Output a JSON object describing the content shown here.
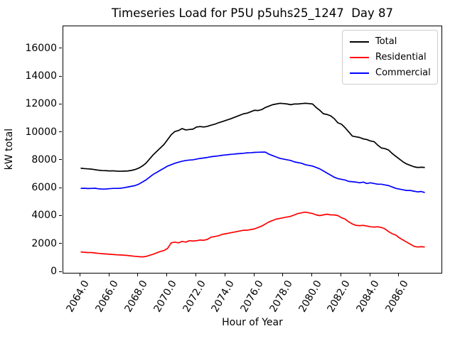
{
  "figure": {
    "background": "#ffffff"
  },
  "chart_data": {
    "type": "line",
    "title": "Timeseries Load for P5U p5uhs25_1247  Day 87",
    "xlabel": "Hour of Year",
    "ylabel": "kW total",
    "xlim": [
      2062.8,
      2088.9
    ],
    "ylim": [
      -50,
      17620
    ],
    "grid": false,
    "x_tick_rotation_deg": 60,
    "x_ticks": [
      {
        "value": 2064,
        "label": "2064.0"
      },
      {
        "value": 2066,
        "label": "2066.0"
      },
      {
        "value": 2068,
        "label": "2068.0"
      },
      {
        "value": 2070,
        "label": "2070.0"
      },
      {
        "value": 2072,
        "label": "2072.0"
      },
      {
        "value": 2074,
        "label": "2074.0"
      },
      {
        "value": 2076,
        "label": "2076.0"
      },
      {
        "value": 2078,
        "label": "2078.0"
      },
      {
        "value": 2080,
        "label": "2080.0"
      },
      {
        "value": 2082,
        "label": "2082.0"
      },
      {
        "value": 2084,
        "label": "2084.0"
      },
      {
        "value": 2086,
        "label": "2086.0"
      }
    ],
    "y_ticks": [
      {
        "value": 0,
        "label": "0"
      },
      {
        "value": 2000,
        "label": "2000"
      },
      {
        "value": 4000,
        "label": "4000"
      },
      {
        "value": 6000,
        "label": "6000"
      },
      {
        "value": 8000,
        "label": "8000"
      },
      {
        "value": 10000,
        "label": "10000"
      },
      {
        "value": 12000,
        "label": "12000"
      },
      {
        "value": 14000,
        "label": "14000"
      },
      {
        "value": 16000,
        "label": "16000"
      }
    ],
    "legend": {
      "position": "upper right",
      "entries": [
        {
          "label": "Total",
          "color": "#000000"
        },
        {
          "label": "Residential",
          "color": "#ff0000"
        },
        {
          "label": "Commercial",
          "color": "#0000ff"
        }
      ]
    },
    "x_start": 2064.0,
    "x_step": 0.25,
    "x_end": 2087.75,
    "series": [
      {
        "name": "Total",
        "color": "#000000",
        "values": [
          7450,
          7420,
          7400,
          7380,
          7340,
          7300,
          7280,
          7270,
          7250,
          7260,
          7240,
          7230,
          7240,
          7250,
          7290,
          7350,
          7450,
          7600,
          7800,
          8100,
          8400,
          8650,
          8900,
          9150,
          9500,
          9850,
          10075,
          10150,
          10290,
          10190,
          10220,
          10250,
          10400,
          10430,
          10400,
          10450,
          10530,
          10600,
          10700,
          10780,
          10870,
          10950,
          11050,
          11150,
          11250,
          11350,
          11400,
          11500,
          11600,
          11580,
          11650,
          11800,
          11900,
          12000,
          12050,
          12100,
          12080,
          12050,
          12000,
          12050,
          12050,
          12080,
          12100,
          12080,
          12050,
          11800,
          11600,
          11350,
          11300,
          11200,
          11000,
          10700,
          10600,
          10350,
          10050,
          9750,
          9700,
          9650,
          9550,
          9500,
          9400,
          9350,
          9100,
          8900,
          8850,
          8750,
          8500,
          8300,
          8100,
          7900,
          7750,
          7650,
          7550,
          7500,
          7520,
          7500
        ]
      },
      {
        "name": "Residential",
        "color": "#ff0000",
        "values": [
          1450,
          1420,
          1400,
          1400,
          1370,
          1340,
          1320,
          1300,
          1280,
          1260,
          1240,
          1230,
          1210,
          1190,
          1160,
          1130,
          1110,
          1090,
          1120,
          1200,
          1280,
          1380,
          1480,
          1550,
          1700,
          2100,
          2150,
          2100,
          2200,
          2150,
          2250,
          2230,
          2250,
          2300,
          2280,
          2350,
          2500,
          2550,
          2600,
          2700,
          2750,
          2800,
          2850,
          2900,
          2950,
          3000,
          3000,
          3050,
          3100,
          3200,
          3300,
          3450,
          3600,
          3700,
          3800,
          3850,
          3900,
          3950,
          4000,
          4100,
          4200,
          4250,
          4300,
          4250,
          4200,
          4100,
          4050,
          4100,
          4150,
          4100,
          4100,
          4050,
          3900,
          3800,
          3600,
          3450,
          3350,
          3330,
          3350,
          3300,
          3250,
          3230,
          3250,
          3200,
          3100,
          2900,
          2750,
          2650,
          2450,
          2300,
          2150,
          2000,
          1850,
          1800,
          1820,
          1800
        ]
      },
      {
        "name": "Commercial",
        "color": "#0000ff",
        "values": [
          6000,
          6010,
          5990,
          6000,
          6010,
          5970,
          5950,
          5960,
          5980,
          6000,
          6000,
          6010,
          6050,
          6100,
          6150,
          6200,
          6300,
          6450,
          6600,
          6800,
          7000,
          7150,
          7300,
          7450,
          7600,
          7700,
          7800,
          7880,
          7950,
          8000,
          8030,
          8050,
          8100,
          8150,
          8180,
          8220,
          8270,
          8300,
          8330,
          8370,
          8400,
          8430,
          8450,
          8480,
          8500,
          8520,
          8550,
          8560,
          8580,
          8590,
          8600,
          8600,
          8450,
          8350,
          8250,
          8150,
          8100,
          8050,
          8000,
          7900,
          7850,
          7800,
          7700,
          7650,
          7600,
          7500,
          7400,
          7250,
          7100,
          6950,
          6800,
          6700,
          6650,
          6600,
          6500,
          6480,
          6450,
          6400,
          6450,
          6350,
          6400,
          6350,
          6300,
          6300,
          6250,
          6200,
          6100,
          6000,
          5950,
          5900,
          5850,
          5850,
          5800,
          5750,
          5780,
          5700
        ]
      }
    ]
  }
}
